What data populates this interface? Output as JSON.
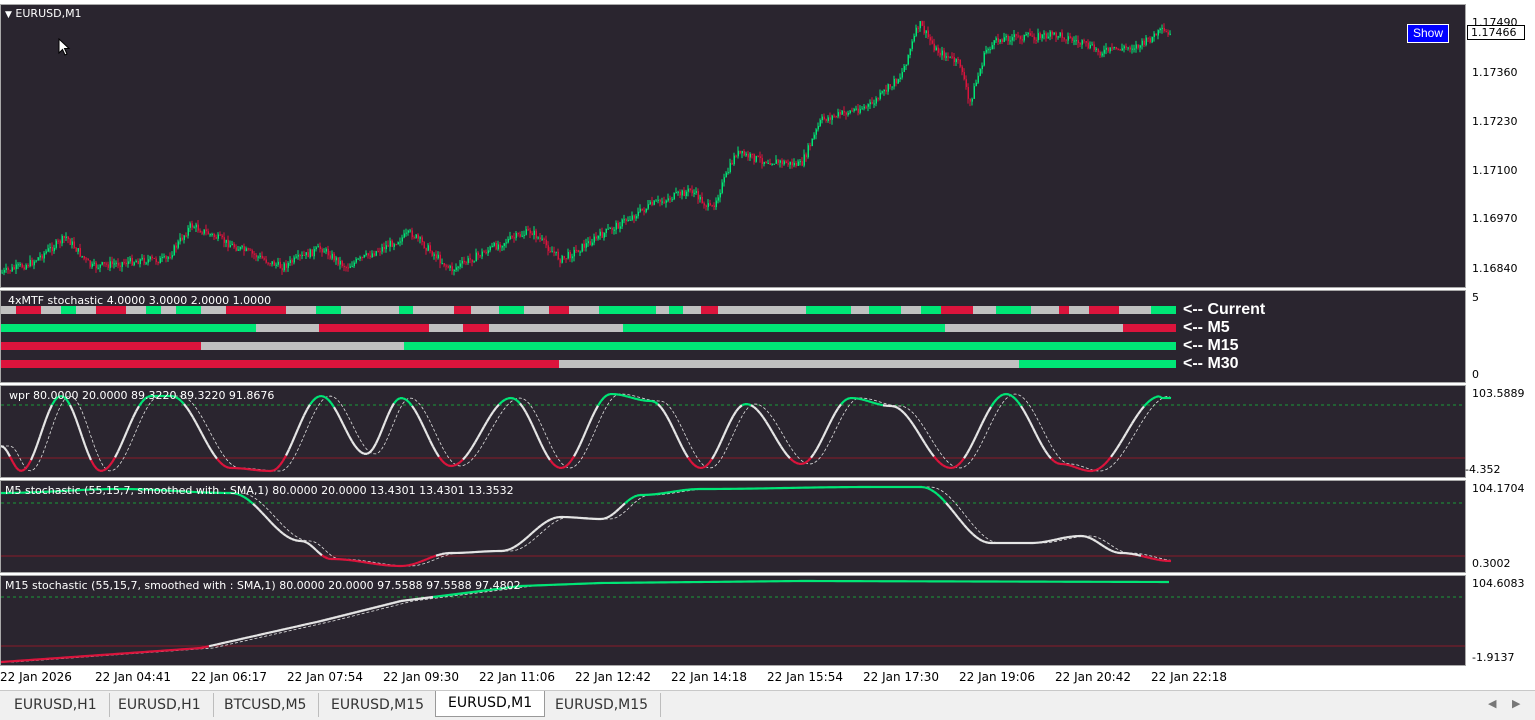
{
  "main": {
    "symbol_label": "EURUSD,M1",
    "show_button": "Show",
    "current_price": "1.17466",
    "price_scale": [
      "1.17490",
      "1.17360",
      "1.17230",
      "1.17100",
      "1.16970",
      "1.16840"
    ],
    "colors": {
      "bull": "#00e676",
      "bear": "#dc143c",
      "background": "#2a252f"
    }
  },
  "mtf": {
    "label": "4xMTF stochastic  4.0000 3.0000 2.0000 1.0000",
    "scale": [
      "5",
      "0"
    ],
    "rows": [
      "<-- Current",
      "<-- M5",
      "<-- M15",
      "<-- M30"
    ]
  },
  "wpr": {
    "label": "wpr  80.0000 20.0000 89.3220 89.3220 91.8676",
    "scale": [
      "103.5889",
      "-4.352"
    ]
  },
  "m5": {
    "label": "M5 stochastic (55,15,7, smoothed with :  SMA,1) 80.0000 20.0000 13.4301 13.4301 13.3532",
    "scale": [
      "104.1704",
      "0.3002"
    ]
  },
  "m15": {
    "label": "M15 stochastic (55,15,7, smoothed with :  SMA,1) 80.0000 20.0000 97.5588 97.5588 97.4802",
    "scale": [
      "104.6083",
      "-1.9137"
    ]
  },
  "time_axis": [
    "22 Jan 2026",
    "22 Jan 04:41",
    "22 Jan 06:17",
    "22 Jan 07:54",
    "22 Jan 09:30",
    "22 Jan 11:06",
    "22 Jan 12:42",
    "22 Jan 14:18",
    "22 Jan 15:54",
    "22 Jan 17:30",
    "22 Jan 19:06",
    "22 Jan 20:42",
    "22 Jan 22:18"
  ],
  "tabs": [
    "EURUSD,H1",
    "EURUSD,H1",
    "BTCUSD,M5",
    "EURUSD,M15",
    "EURUSD,M1",
    "EURUSD,M15"
  ],
  "active_tab": "EURUSD,M1"
}
